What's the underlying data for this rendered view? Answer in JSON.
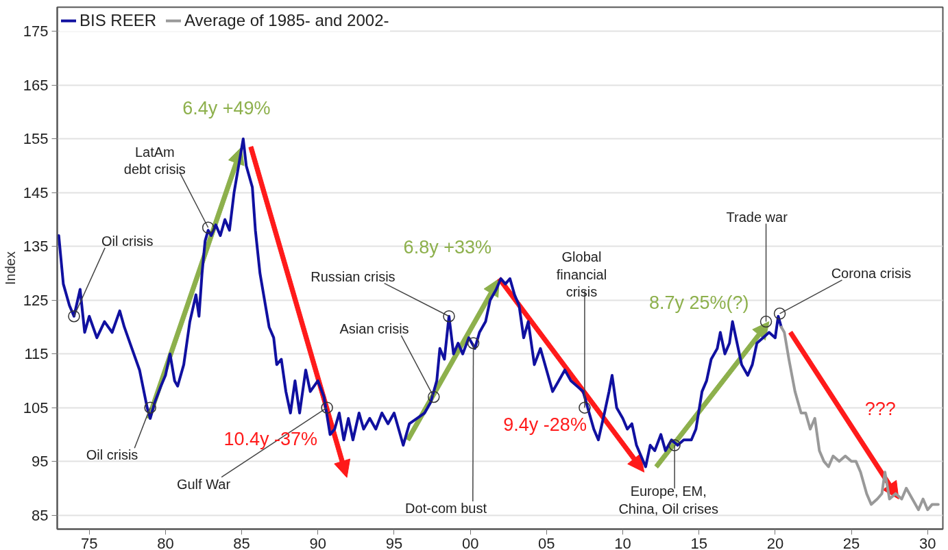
{
  "chart_data": {
    "type": "line",
    "ylabel": "Index",
    "xlim": [
      1972.9,
      2031
    ],
    "ylim": [
      82.4,
      179.5
    ],
    "xticks": [
      {
        "value": 1975,
        "label": "75"
      },
      {
        "value": 1980,
        "label": "80"
      },
      {
        "value": 1985,
        "label": "85"
      },
      {
        "value": 1990,
        "label": "90"
      },
      {
        "value": 1995,
        "label": "95"
      },
      {
        "value": 2000,
        "label": "00"
      },
      {
        "value": 2005,
        "label": "05"
      },
      {
        "value": 2010,
        "label": "10"
      },
      {
        "value": 2015,
        "label": "15"
      },
      {
        "value": 2020,
        "label": "20"
      },
      {
        "value": 2025,
        "label": "25"
      },
      {
        "value": 2030,
        "label": "30"
      }
    ],
    "yticks": [
      85,
      95,
      105,
      115,
      125,
      135,
      145,
      155,
      165,
      175
    ],
    "grid": "y",
    "legend": "top left",
    "line_style": "solid",
    "series": [
      {
        "name": "BIS REER",
        "color": "#1010a0",
        "x": [
          1973.0,
          1973.3,
          1973.7,
          1974.0,
          1974.4,
          1974.7,
          1975.0,
          1975.5,
          1976.0,
          1976.5,
          1977.0,
          1977.3,
          1977.8,
          1978.3,
          1978.8,
          1979.0,
          1979.3,
          1979.7,
          1980.0,
          1980.3,
          1980.6,
          1980.8,
          1981.2,
          1981.6,
          1982.0,
          1982.2,
          1982.4,
          1982.6,
          1982.8,
          1983.0,
          1983.3,
          1983.6,
          1983.9,
          1984.2,
          1984.5,
          1984.8,
          1985.1,
          1985.3,
          1985.7,
          1985.9,
          1986.2,
          1986.5,
          1986.8,
          1987.1,
          1987.3,
          1987.6,
          1987.9,
          1988.2,
          1988.5,
          1988.8,
          1989.2,
          1989.5,
          1990.0,
          1990.4,
          1990.8,
          1991.1,
          1991.4,
          1991.7,
          1992.0,
          1992.3,
          1992.7,
          1993.0,
          1993.4,
          1993.8,
          1994.2,
          1994.6,
          1995.0,
          1995.3,
          1995.6,
          1996.0,
          1996.5,
          1997.0,
          1997.4,
          1997.8,
          1998.0,
          1998.3,
          1998.6,
          1998.9,
          1999.2,
          1999.5,
          1999.9,
          2000.3,
          2000.6,
          2001.0,
          2001.3,
          2001.7,
          2002.0,
          2002.3,
          2002.6,
          2002.9,
          2003.2,
          2003.5,
          2003.8,
          2004.2,
          2004.6,
          2005.0,
          2005.4,
          2005.8,
          2006.2,
          2006.6,
          2007.0,
          2007.4,
          2007.8,
          2008.1,
          2008.4,
          2008.8,
          2009.1,
          2009.3,
          2009.6,
          2010.0,
          2010.3,
          2010.6,
          2010.9,
          2011.2,
          2011.5,
          2011.8,
          2012.1,
          2012.5,
          2012.8,
          2013.2,
          2013.6,
          2014.0,
          2014.5,
          2014.8,
          2015.2,
          2015.5,
          2015.8,
          2016.2,
          2016.4,
          2016.7,
          2017.0,
          2017.2,
          2017.5,
          2017.8,
          2018.2,
          2018.5,
          2018.8,
          2019.2,
          2019.6,
          2020.0,
          2020.2,
          2020.4
        ],
        "values": [
          137,
          128,
          124,
          122,
          127,
          119,
          122,
          118,
          121,
          119,
          123,
          120,
          116,
          112,
          105,
          103,
          106,
          109,
          111,
          115,
          110,
          109,
          113,
          121,
          126,
          122,
          130,
          136,
          138,
          137,
          139,
          137,
          140,
          138,
          145,
          150,
          155,
          150,
          146,
          138,
          130,
          125,
          120,
          118,
          113,
          114,
          108,
          104,
          110,
          104,
          112,
          108,
          110,
          107,
          100,
          101,
          104,
          99,
          103,
          99,
          104,
          101,
          103,
          101,
          104,
          102,
          104,
          101,
          98,
          102,
          103,
          104,
          106,
          110,
          116,
          114,
          122,
          115,
          117,
          115,
          118,
          116,
          119,
          121,
          125,
          127,
          129,
          128,
          129,
          126,
          124,
          118,
          121,
          113,
          116,
          112,
          108,
          110,
          112,
          110,
          109,
          108,
          104,
          101,
          99,
          104,
          108,
          111,
          105,
          103,
          101,
          102,
          98,
          96,
          94,
          98,
          97,
          100,
          97,
          99,
          98,
          99,
          99,
          101,
          108,
          110,
          114,
          116,
          119,
          115,
          117,
          121,
          117,
          113,
          111,
          113,
          117,
          118,
          119,
          118,
          122,
          120
        ]
      },
      {
        "name": "Average of 1985- and 2002-",
        "color": "#999999",
        "x": [
          2020.4,
          2020.6,
          2020.9,
          2021.3,
          2021.7,
          2022.0,
          2022.3,
          2022.6,
          2022.9,
          2023.2,
          2023.5,
          2023.8,
          2024.2,
          2024.6,
          2025.0,
          2025.3,
          2025.6,
          2026.0,
          2026.3,
          2026.7,
          2027.0,
          2027.2,
          2027.5,
          2027.9,
          2028.3,
          2028.6,
          2029.0,
          2029.4,
          2029.7,
          2030.0,
          2030.3,
          2030.7
        ],
        "values": [
          120,
          119,
          114,
          108,
          104,
          104,
          101,
          103,
          97,
          95,
          94,
          96,
          95,
          96,
          95,
          95,
          93,
          89,
          87,
          88,
          89,
          93,
          88,
          89,
          88,
          90,
          88,
          86,
          88,
          86,
          87,
          87
        ]
      }
    ],
    "annotations": [
      {
        "text": "Oil crisis",
        "x": 1974.0,
        "y": 122
      },
      {
        "text": "LatAm\ndebt crisis",
        "x": 1982.8,
        "y": 138.5
      },
      {
        "text": "Oil crisis",
        "x": 1979.0,
        "y": 105
      },
      {
        "text": "Gulf War",
        "x": 1990.6,
        "y": 105
      },
      {
        "text": "Russian crisis",
        "x": 1998.6,
        "y": 122
      },
      {
        "text": "Asian crisis",
        "x": 1997.6,
        "y": 107
      },
      {
        "text": "Dot-com bust",
        "x": 2000.2,
        "y": 117
      },
      {
        "text": "Global\nfinancial\ncrisis",
        "x": 2007.5,
        "y": 105
      },
      {
        "text": "Europe, EM,\nChina, Oil crises",
        "x": 2013.4,
        "y": 98
      },
      {
        "text": "Trade war",
        "x": 2019.4,
        "y": 121
      },
      {
        "text": "Corona crisis",
        "x": 2020.3,
        "y": 122.5
      },
      "6.4y +49%",
      "10.4y -37%",
      "6.8y +33%",
      "9.4y -28%",
      "8.7y 25%(?)",
      "???"
    ]
  }
}
